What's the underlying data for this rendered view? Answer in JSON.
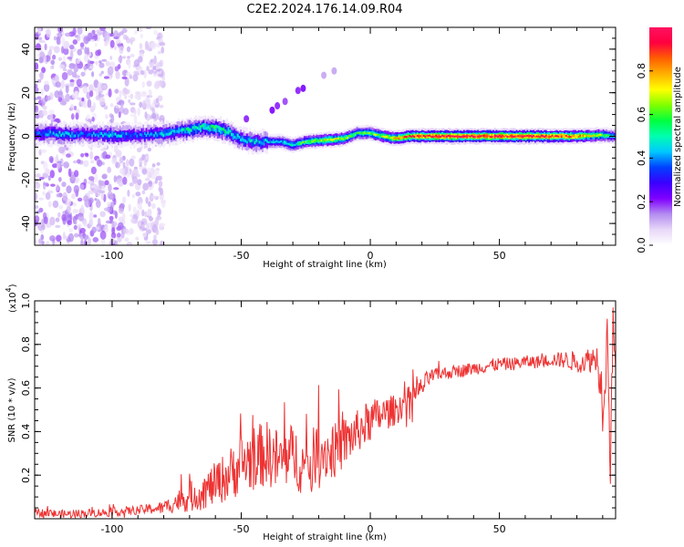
{
  "figure": {
    "title": "C2E2.2024.176.14.09.R04"
  },
  "chart_data": [
    {
      "type": "heatmap",
      "xlabel": "Height of straight line (km)",
      "ylabel": "Frequency (Hz)",
      "xlim": [
        -130,
        95
      ],
      "ylim": [
        -50,
        50
      ],
      "xticks": [
        "-100",
        "-50",
        "0",
        "50"
      ],
      "xtick_values": [
        -100,
        -50,
        0,
        50
      ],
      "yticks": [
        "-40",
        "-20",
        "0",
        "20",
        "40"
      ],
      "ytick_values": [
        -40,
        -20,
        0,
        20,
        40
      ],
      "colorbar": {
        "label": "Normalized spectral amplitude",
        "range": [
          0,
          1
        ],
        "ticks": [
          "0.0",
          "0.2",
          "0.4",
          "0.6",
          "0.8"
        ],
        "tick_values": [
          0,
          0.2,
          0.4,
          0.6,
          0.8
        ],
        "colormap": [
          "#ffffff",
          "#e8d8f8",
          "#b38cf0",
          "#8000ff",
          "#3a00ff",
          "#0040ff",
          "#00c8ff",
          "#00ffb0",
          "#00ff40",
          "#80ff00",
          "#ffff00",
          "#ffb000",
          "#ff6000",
          "#ff0040",
          "#ff1060"
        ]
      },
      "ridge": {
        "height_km": [
          -130,
          -120,
          -110,
          -100,
          -90,
          -80,
          -75,
          -70,
          -65,
          -60,
          -55,
          -50,
          -45,
          -40,
          -35,
          -30,
          -25,
          -20,
          -15,
          -10,
          -5,
          0,
          5,
          10,
          15,
          20,
          30,
          40,
          50,
          60,
          70,
          80,
          90,
          95
        ],
        "frequency_hz": [
          1.5,
          1.0,
          1.0,
          0.5,
          0.5,
          1.0,
          2.0,
          3.0,
          4.0,
          4.0,
          2.0,
          -1.5,
          -2.5,
          -2.5,
          -2.5,
          -4.0,
          -2.5,
          -2.0,
          -1.5,
          -1.0,
          1.5,
          1.5,
          0.0,
          -1.0,
          0.0,
          0.0,
          0.0,
          0.0,
          0.0,
          0.0,
          0.0,
          0.0,
          0.5,
          0.0
        ],
        "amplitude": [
          0.35,
          0.45,
          0.35,
          0.45,
          0.35,
          0.45,
          0.45,
          0.5,
          0.5,
          0.55,
          0.5,
          0.45,
          0.45,
          0.45,
          0.45,
          0.5,
          0.6,
          0.65,
          0.7,
          0.65,
          0.55,
          0.6,
          0.65,
          0.75,
          0.85,
          0.9,
          0.95,
          0.95,
          0.95,
          0.95,
          0.9,
          0.8,
          0.6,
          0.45
        ]
      },
      "scatter_region_km": [
        -130,
        -80
      ],
      "side_blobs": [
        {
          "height_km": -38,
          "frequency_hz": 12,
          "amplitude": 0.22
        },
        {
          "height_km": -36,
          "frequency_hz": 14,
          "amplitude": 0.2
        },
        {
          "height_km": -33,
          "frequency_hz": 16,
          "amplitude": 0.18
        },
        {
          "height_km": -28,
          "frequency_hz": 21,
          "amplitude": 0.2
        },
        {
          "height_km": -26,
          "frequency_hz": 22,
          "amplitude": 0.22
        },
        {
          "height_km": -18,
          "frequency_hz": 28,
          "amplitude": 0.12
        },
        {
          "height_km": -14,
          "frequency_hz": 30,
          "amplitude": 0.12
        },
        {
          "height_km": -48,
          "frequency_hz": 8,
          "amplitude": 0.2
        }
      ]
    },
    {
      "type": "line",
      "xlabel": "Height of straight line (km)",
      "ylabel": "SNR (10 * v/v)",
      "y_multiplier": "(x10",
      "y_multiplier_exp": "4",
      "y_multiplier_close": ")",
      "xlim": [
        -130,
        95
      ],
      "ylim": [
        0,
        1.0
      ],
      "xticks": [
        "-100",
        "-50",
        "0",
        "50"
      ],
      "xtick_values": [
        -100,
        -50,
        0,
        50
      ],
      "yticks": [
        "0.2",
        "0.4",
        "0.6",
        "0.8",
        "1.0"
      ],
      "ytick_values": [
        0.2,
        0.4,
        0.6,
        0.8,
        1.0
      ],
      "series": [
        {
          "color": "#ee3333",
          "x": [
            -130,
            -120,
            -110,
            -100,
            -90,
            -80,
            -75,
            -70,
            -65,
            -60,
            -55,
            -50,
            -45,
            -40,
            -35,
            -30,
            -25,
            -20,
            -15,
            -10,
            -5,
            0,
            5,
            10,
            15,
            20,
            22,
            25,
            30,
            35,
            40,
            45,
            50,
            55,
            60,
            65,
            70,
            75,
            80,
            85,
            88,
            90,
            92,
            93,
            94,
            95
          ],
          "y": [
            0.03,
            0.02,
            0.025,
            0.03,
            0.04,
            0.05,
            0.08,
            0.1,
            0.12,
            0.16,
            0.2,
            0.25,
            0.28,
            0.3,
            0.26,
            0.3,
            0.22,
            0.32,
            0.3,
            0.35,
            0.4,
            0.45,
            0.48,
            0.5,
            0.55,
            0.6,
            0.64,
            0.66,
            0.67,
            0.68,
            0.69,
            0.7,
            0.71,
            0.71,
            0.72,
            0.72,
            0.73,
            0.73,
            0.72,
            0.73,
            0.74,
            0.55,
            0.85,
            0.2,
            0.95,
            0.7
          ],
          "noise": [
            0.02,
            0.02,
            0.02,
            0.02,
            0.02,
            0.03,
            0.05,
            0.07,
            0.08,
            0.1,
            0.12,
            0.14,
            0.15,
            0.15,
            0.15,
            0.14,
            0.14,
            0.14,
            0.13,
            0.12,
            0.1,
            0.1,
            0.08,
            0.07,
            0.06,
            0.05,
            0.04,
            0.03,
            0.03,
            0.03,
            0.03,
            0.03,
            0.03,
            0.03,
            0.03,
            0.03,
            0.03,
            0.04,
            0.05,
            0.06,
            0.07,
            0.15,
            0.15,
            0.1,
            0.1,
            0.05
          ]
        }
      ]
    }
  ]
}
